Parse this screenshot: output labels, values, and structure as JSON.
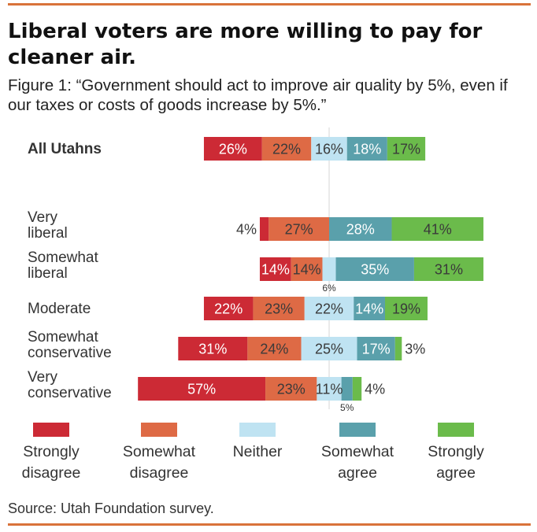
{
  "title": "Liberal voters are more willing to pay for cleaner air.",
  "subtitle": "Figure 1: “Government should act to improve air quality by 5%, even if our taxes or costs of goods increase by 5%.”",
  "source": "Source: Utah Foundation survey.",
  "colors": {
    "strongly_disagree": "#cc2a35",
    "somewhat_disagree": "#de6a45",
    "neither": "#bfe3f2",
    "somewhat_agree": "#5aa0ab",
    "strongly_agree": "#6bbb4b",
    "rule": "#d9733a"
  },
  "legend": [
    {
      "line1": "Strongly",
      "line2": "disagree",
      "color": "#cc2a35"
    },
    {
      "line1": "Somewhat",
      "line2": "disagree",
      "color": "#de6a45"
    },
    {
      "line1": "Neither",
      "line2": "",
      "color": "#bfe3f2"
    },
    {
      "line1": "Somewhat",
      "line2": "agree",
      "color": "#5aa0ab"
    },
    {
      "line1": "Strongly",
      "line2": "agree",
      "color": "#6bbb4b"
    }
  ],
  "chart_data": {
    "type": "bar",
    "orientation": "horizontal",
    "stacked": true,
    "diverging": true,
    "series_names": [
      "Strongly disagree",
      "Somewhat disagree",
      "Neither",
      "Somewhat agree",
      "Strongly agree"
    ],
    "rows": [
      {
        "label": [
          "All Utahns"
        ],
        "bold": true,
        "values": [
          26,
          22,
          16,
          18,
          17
        ],
        "labels": [
          "26%",
          "22%",
          "16%",
          "18%",
          "17%"
        ]
      },
      {
        "label": [
          "Very",
          "liberal"
        ],
        "bold": false,
        "values": [
          4,
          27,
          0,
          28,
          41
        ],
        "labels": [
          "4%",
          "27%",
          "",
          "28%",
          "41%"
        ]
      },
      {
        "label": [
          "Somewhat",
          "liberal"
        ],
        "bold": false,
        "values": [
          14,
          14,
          6,
          35,
          31
        ],
        "labels": [
          "14%",
          "14%",
          "6%",
          "35%",
          "31%"
        ]
      },
      {
        "label": [
          "Moderate"
        ],
        "bold": false,
        "values": [
          22,
          23,
          22,
          14,
          19
        ],
        "labels": [
          "22%",
          "23%",
          "22%",
          "14%",
          "19%"
        ]
      },
      {
        "label": [
          "Somewhat",
          "conservative"
        ],
        "bold": false,
        "values": [
          31,
          24,
          25,
          17,
          3
        ],
        "labels": [
          "31%",
          "24%",
          "25%",
          "17%",
          "3%"
        ]
      },
      {
        "label": [
          "Very",
          "conservative"
        ],
        "bold": false,
        "values": [
          57,
          23,
          11,
          5,
          4
        ],
        "labels": [
          "57%",
          "23%",
          "11%",
          "5%",
          "4%"
        ]
      }
    ]
  }
}
